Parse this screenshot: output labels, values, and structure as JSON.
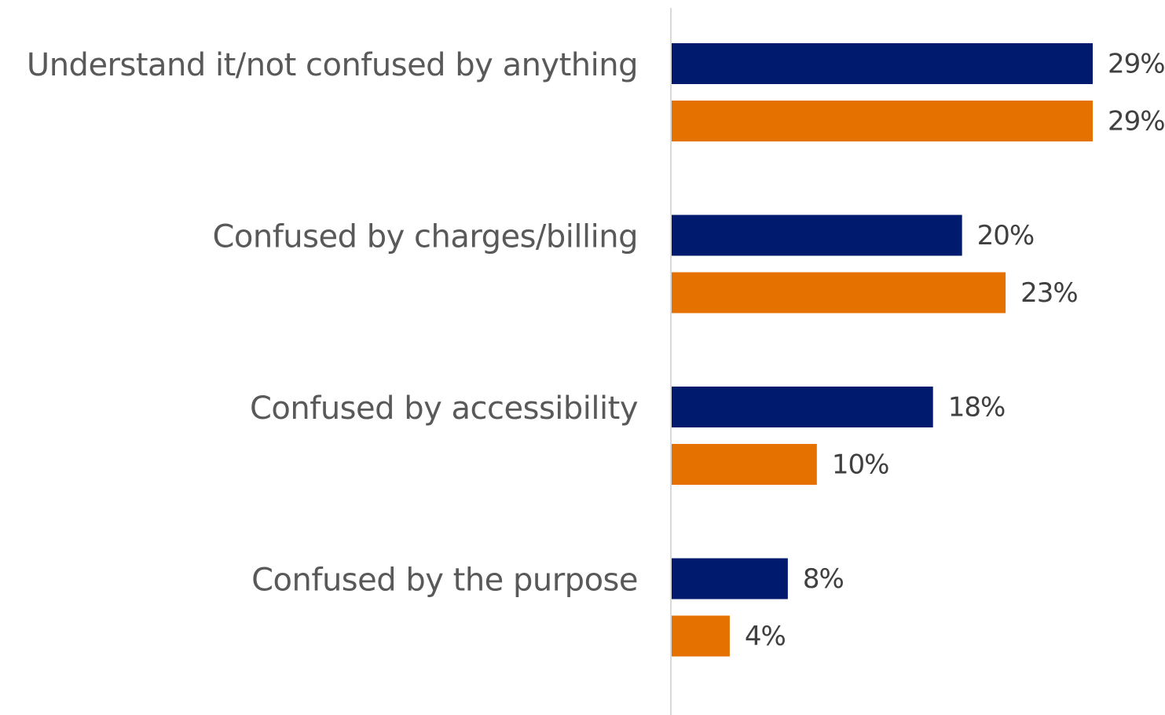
{
  "chart_data": {
    "type": "bar",
    "orientation": "horizontal",
    "categories": [
      "Understand it/not confused by anything",
      "Confused by charges/billing",
      "Confused by accessibility",
      "Confused by the purpose"
    ],
    "series": [
      {
        "color": "#001b6e",
        "values": [
          29,
          20,
          18,
          8
        ],
        "labels": [
          "29%",
          "20%",
          "18%",
          "8%"
        ]
      },
      {
        "color": "#e57200",
        "values": [
          29,
          23,
          10,
          4
        ],
        "labels": [
          "29%",
          "23%",
          "10%",
          "4%"
        ]
      }
    ],
    "value_unit": "%",
    "xlim": [
      0,
      29
    ],
    "grid": false,
    "legend": "none",
    "axis_color": "#d9d9d9"
  }
}
